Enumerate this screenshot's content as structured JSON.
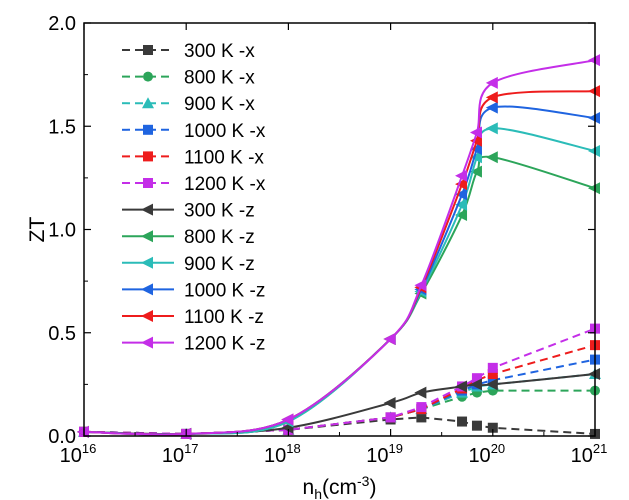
{
  "chart_data": {
    "type": "line",
    "xscale": "log",
    "xlim": [
      1e+16,
      1e+21
    ],
    "ylim": [
      0.0,
      2.0
    ],
    "xlabel": {
      "base": "n",
      "sub": "h",
      "unit_open": "(cm",
      "unit_sup": "-3",
      "unit_close": ")"
    },
    "ylabel": "ZT",
    "x_ticks": [
      {
        "value": 1e+16,
        "base": "10",
        "exp": "16"
      },
      {
        "value": 1e+17,
        "base": "10",
        "exp": "17"
      },
      {
        "value": 1e+18,
        "base": "10",
        "exp": "18"
      },
      {
        "value": 1e+19,
        "base": "10",
        "exp": "19"
      },
      {
        "value": 1e+20,
        "base": "10",
        "exp": "20"
      },
      {
        "value": 1e+21,
        "base": "10",
        "exp": "21"
      }
    ],
    "y_ticks": [
      "0.0",
      "0.5",
      "1.0",
      "1.5",
      "2.0"
    ],
    "y_tick_values": [
      0.0,
      0.5,
      1.0,
      1.5,
      2.0
    ],
    "legend_position": "top-left",
    "series": [
      {
        "name": "300 K -x",
        "color": "#3a3a3a",
        "marker": "square",
        "dashed": true,
        "x": [
          1e+16,
          1e+17,
          1e+18,
          1e+19,
          2e+19,
          5e+19,
          7e+19,
          1e+20,
          1e+21
        ],
        "y": [
          0.02,
          0.01,
          0.03,
          0.08,
          0.09,
          0.07,
          0.05,
          0.04,
          0.01
        ]
      },
      {
        "name": "800 K -x",
        "color": "#2ca55a",
        "marker": "circle",
        "dashed": true,
        "x": [
          1e+16,
          1e+17,
          1e+18,
          1e+19,
          2e+19,
          5e+19,
          7e+19,
          1e+20,
          1e+21
        ],
        "y": [
          0.02,
          0.01,
          0.03,
          0.09,
          0.13,
          0.19,
          0.21,
          0.22,
          0.22
        ]
      },
      {
        "name": "900 K -x",
        "color": "#2bbcb8",
        "marker": "triangle",
        "dashed": true,
        "x": [
          1e+16,
          1e+17,
          1e+18,
          1e+19,
          2e+19,
          5e+19,
          7e+19,
          1e+20,
          1e+21
        ],
        "y": [
          0.02,
          0.01,
          0.03,
          0.09,
          0.13,
          0.21,
          0.24,
          0.25,
          0.3
        ]
      },
      {
        "name": "1000 K -x",
        "color": "#1f64e0",
        "marker": "square",
        "dashed": true,
        "x": [
          1e+16,
          1e+17,
          1e+18,
          1e+19,
          2e+19,
          5e+19,
          7e+19,
          1e+20,
          1e+21
        ],
        "y": [
          0.02,
          0.01,
          0.03,
          0.09,
          0.13,
          0.22,
          0.25,
          0.27,
          0.37
        ]
      },
      {
        "name": "1100 K -x",
        "color": "#ee1c1c",
        "marker": "square",
        "dashed": true,
        "x": [
          1e+16,
          1e+17,
          1e+18,
          1e+19,
          2e+19,
          5e+19,
          7e+19,
          1e+20,
          1e+21
        ],
        "y": [
          0.02,
          0.01,
          0.03,
          0.09,
          0.13,
          0.23,
          0.27,
          0.3,
          0.44
        ]
      },
      {
        "name": "1200 K -x",
        "color": "#c42ee8",
        "marker": "square",
        "dashed": true,
        "x": [
          1e+16,
          1e+17,
          1e+18,
          1e+19,
          2e+19,
          5e+19,
          7e+19,
          1e+20,
          1e+21
        ],
        "y": [
          0.02,
          0.01,
          0.03,
          0.09,
          0.14,
          0.24,
          0.28,
          0.33,
          0.52
        ]
      },
      {
        "name": "300 K -z",
        "color": "#3a3a3a",
        "marker": "triangle-left",
        "dashed": false,
        "x": [
          1e+16,
          1e+17,
          1e+18,
          1e+19,
          2e+19,
          5e+19,
          7e+19,
          1e+20,
          1e+21
        ],
        "y": [
          0.02,
          0.01,
          0.04,
          0.16,
          0.21,
          0.24,
          0.25,
          0.25,
          0.3
        ]
      },
      {
        "name": "800 K -z",
        "color": "#2ca55a",
        "marker": "triangle-left",
        "dashed": false,
        "x": [
          1e+16,
          1e+17,
          1e+18,
          1e+19,
          2e+19,
          5e+19,
          7e+19,
          1e+20,
          1e+21
        ],
        "y": [
          0.02,
          0.01,
          0.07,
          0.47,
          0.69,
          1.07,
          1.28,
          1.35,
          1.2
        ]
      },
      {
        "name": "900 K -z",
        "color": "#2bbcb8",
        "marker": "triangle-left",
        "dashed": false,
        "x": [
          1e+16,
          1e+17,
          1e+18,
          1e+19,
          2e+19,
          5e+19,
          7e+19,
          1e+20,
          1e+21
        ],
        "y": [
          0.02,
          0.01,
          0.07,
          0.47,
          0.7,
          1.12,
          1.35,
          1.49,
          1.38
        ]
      },
      {
        "name": "1000 K -z",
        "color": "#1f64e0",
        "marker": "triangle-left",
        "dashed": false,
        "x": [
          1e+16,
          1e+17,
          1e+18,
          1e+19,
          2e+19,
          5e+19,
          7e+19,
          1e+20,
          1e+21
        ],
        "y": [
          0.02,
          0.01,
          0.08,
          0.47,
          0.71,
          1.17,
          1.39,
          1.59,
          1.54
        ]
      },
      {
        "name": "1100 K -z",
        "color": "#ee1c1c",
        "marker": "triangle-left",
        "dashed": false,
        "x": [
          1e+16,
          1e+17,
          1e+18,
          1e+19,
          2e+19,
          5e+19,
          7e+19,
          1e+20,
          1e+21
        ],
        "y": [
          0.02,
          0.01,
          0.08,
          0.47,
          0.72,
          1.22,
          1.43,
          1.64,
          1.67
        ]
      },
      {
        "name": "1200 K -z",
        "color": "#c42ee8",
        "marker": "triangle-left",
        "dashed": false,
        "x": [
          1e+16,
          1e+17,
          1e+18,
          1e+19,
          2e+19,
          5e+19,
          7e+19,
          1e+20,
          1e+21
        ],
        "y": [
          0.02,
          0.01,
          0.08,
          0.47,
          0.73,
          1.26,
          1.47,
          1.71,
          1.82
        ]
      }
    ]
  }
}
